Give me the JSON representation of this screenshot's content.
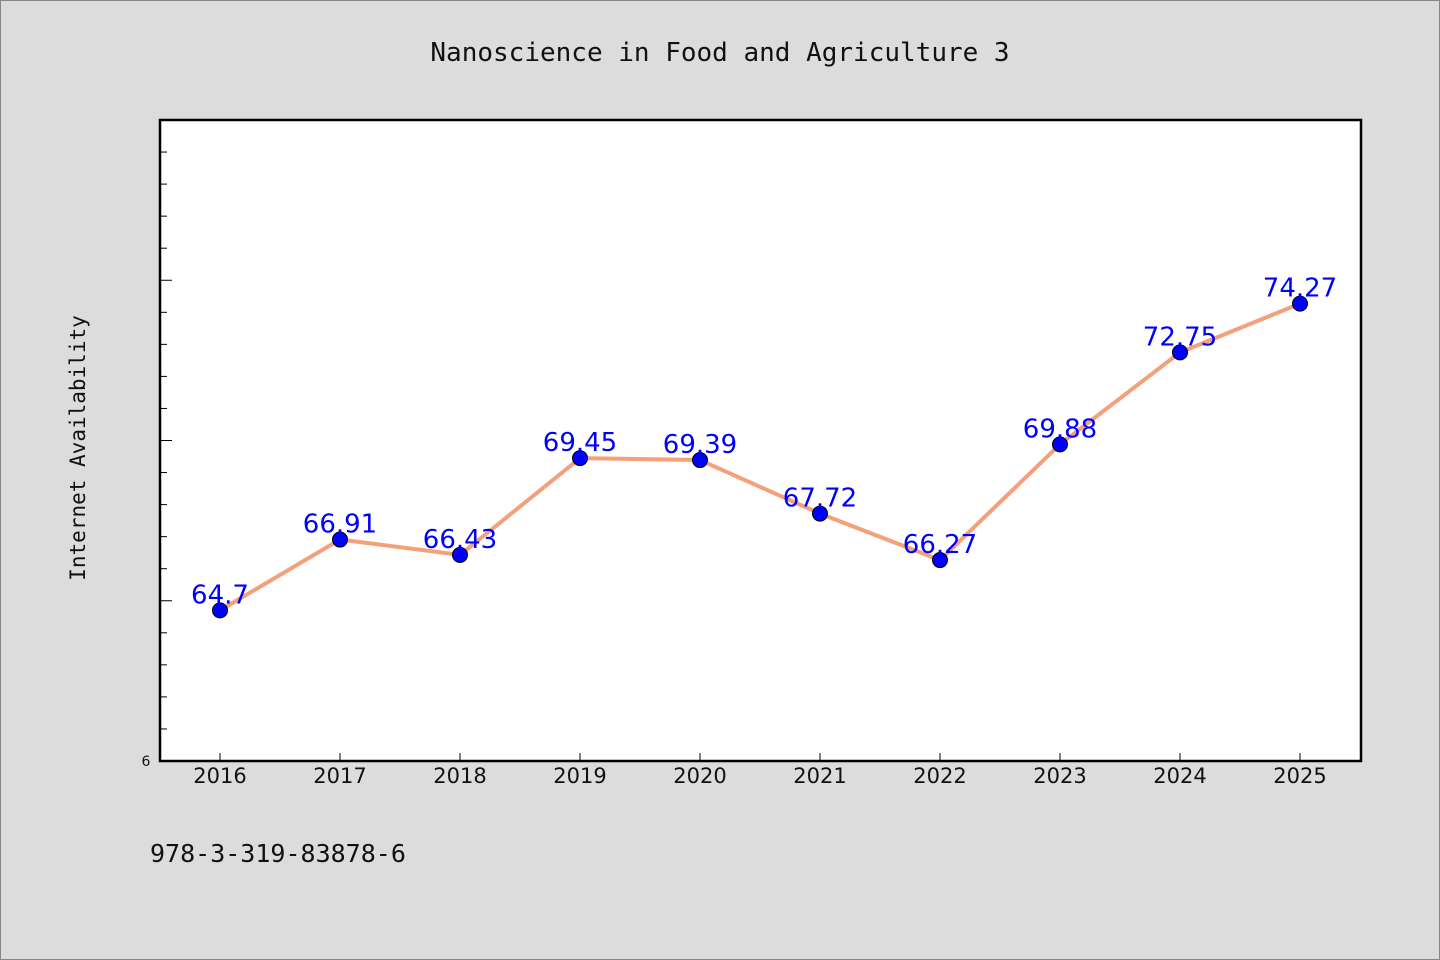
{
  "chart_data": {
    "type": "line",
    "title": "Nanoscience in Food and Agriculture 3",
    "ylabel": "Internet Availability",
    "xlabel": "",
    "categories": [
      "2016",
      "2017",
      "2018",
      "2019",
      "2020",
      "2021",
      "2022",
      "2023",
      "2024",
      "2025"
    ],
    "series": [
      {
        "values": [
          64.7,
          66.91,
          66.43,
          69.45,
          69.39,
          67.72,
          66.27,
          69.88,
          72.75,
          74.27
        ],
        "labels": [
          "64.7",
          "66.91",
          "66.43",
          "69.45",
          "69.39",
          "67.72",
          "66.27",
          "69.88",
          "72.75",
          "74.27"
        ]
      }
    ],
    "ylim": [
      60,
      80
    ],
    "y_tick_label_min": "6",
    "grid": false,
    "legend": "none",
    "line_color": "#f4a07a",
    "marker_color": "#0000ff",
    "label_color": "#0000ff",
    "plot_background": "#ffffff",
    "figure_background": "#dcdcdc"
  },
  "footer": {
    "isbn": "978-3-319-83878-6"
  }
}
